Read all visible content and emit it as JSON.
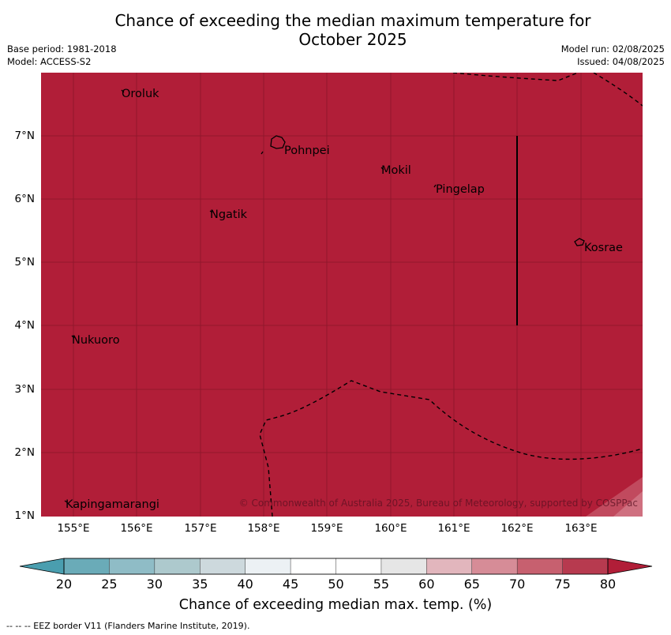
{
  "title_line1": "Chance of exceeding the median maximum temperature for",
  "title_line2": "October 2025",
  "meta": {
    "base_period": "Base period: 1981-2018",
    "model": "Model: ACCESS-S2",
    "model_run": "Model run: 02/08/2025",
    "issued": "Issued: 04/08/2025"
  },
  "map": {
    "fill_color": "#b11e38",
    "places": [
      "Oroluk",
      "Pohnpei",
      "Mokil",
      "Pingelap",
      "Ngatik",
      "Kosrae",
      "Nukuoro",
      "Kapingamarangi"
    ],
    "copyright": "© Commonwealth of Australia 2025, Bureau of Meteorology, supported by COSPPac",
    "lat_labels": [
      "7°N",
      "6°N",
      "5°N",
      "4°N",
      "3°N",
      "2°N",
      "1°N"
    ],
    "lon_labels": [
      "155°E",
      "156°E",
      "157°E",
      "158°E",
      "159°E",
      "160°E",
      "161°E",
      "162°E",
      "163°E"
    ]
  },
  "colorbar": {
    "ticks": [
      "20",
      "25",
      "30",
      "35",
      "40",
      "45",
      "50",
      "55",
      "60",
      "65",
      "70",
      "75",
      "80"
    ],
    "colors": [
      "#6aabb8",
      "#8fbcc6",
      "#adc9cd",
      "#cdd9dd",
      "#ecf1f4",
      "#ffffff",
      "#ffffff",
      "#e6e6e6",
      "#e2b6bd",
      "#d68c97",
      "#c7606f",
      "#b73a4f"
    ],
    "under_color": "#4a9eaf",
    "over_color": "#b11e38",
    "label": "Chance of exceeding median max. temp. (%)"
  },
  "footnote": "--  --  -- EEZ border V11 (Flanders Marine Institute, 2019)."
}
